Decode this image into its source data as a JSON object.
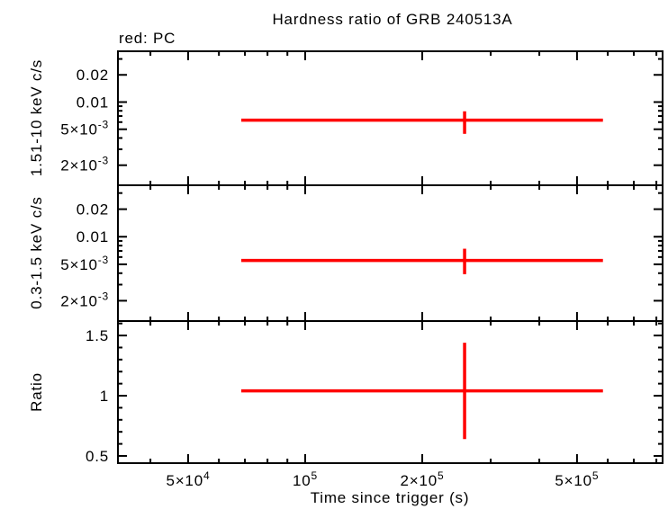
{
  "chart_data": {
    "type": "errorbar",
    "title": "Hardness ratio of GRB 240513A",
    "legend": "red: PC",
    "xlabel": "Time since trigger (s)",
    "series_color": "#ff0000",
    "frame_color": "#000000",
    "background_color": "#ffffff",
    "x_axis": {
      "scale": "log",
      "lim": [
        33000,
        830000
      ],
      "major_ticks": [
        {
          "value": 50000,
          "label": "5×10^4"
        },
        {
          "value": 100000,
          "label": "10^5"
        },
        {
          "value": 200000,
          "label": "2×10^5"
        },
        {
          "value": 500000,
          "label": "5×10^5"
        }
      ]
    },
    "panels": [
      {
        "name": "hard",
        "ylabel": "1.51-10 keV c/s",
        "yscale": "log",
        "ylim": [
          0.0012,
          0.0365
        ],
        "yticks": [
          {
            "value": 0.02,
            "label": "0.02"
          },
          {
            "value": 0.01,
            "label": "0.01"
          },
          {
            "value": 0.005,
            "label": "5×10^-3"
          },
          {
            "value": 0.002,
            "label": "2×10^-3"
          }
        ],
        "point": {
          "x": 257000,
          "x_lo": 68500,
          "x_hi": 583000,
          "y": 0.0063,
          "y_lo": 0.00445,
          "y_hi": 0.0079
        }
      },
      {
        "name": "soft",
        "ylabel": "0.3-1.5 keV c/s",
        "yscale": "log",
        "ylim": [
          0.0012,
          0.0365
        ],
        "yticks": [
          {
            "value": 0.02,
            "label": "0.02"
          },
          {
            "value": 0.01,
            "label": "0.01"
          },
          {
            "value": 0.005,
            "label": "5×10^-3"
          },
          {
            "value": 0.002,
            "label": "2×10^-3"
          }
        ],
        "point": {
          "x": 257000,
          "x_lo": 68500,
          "x_hi": 583000,
          "y": 0.0055,
          "y_lo": 0.0039,
          "y_hi": 0.0074
        }
      },
      {
        "name": "ratio",
        "ylabel": "Ratio",
        "yscale": "linear",
        "ylim": [
          0.44,
          1.62
        ],
        "minor_step": 0.1,
        "yticks": [
          {
            "value": 1.5,
            "label": "1.5"
          },
          {
            "value": 1.0,
            "label": "1"
          },
          {
            "value": 0.5,
            "label": "0.5"
          }
        ],
        "point": {
          "x": 257000,
          "x_lo": 68500,
          "x_hi": 583000,
          "y": 1.04,
          "y_lo": 0.64,
          "y_hi": 1.44
        }
      }
    ]
  }
}
